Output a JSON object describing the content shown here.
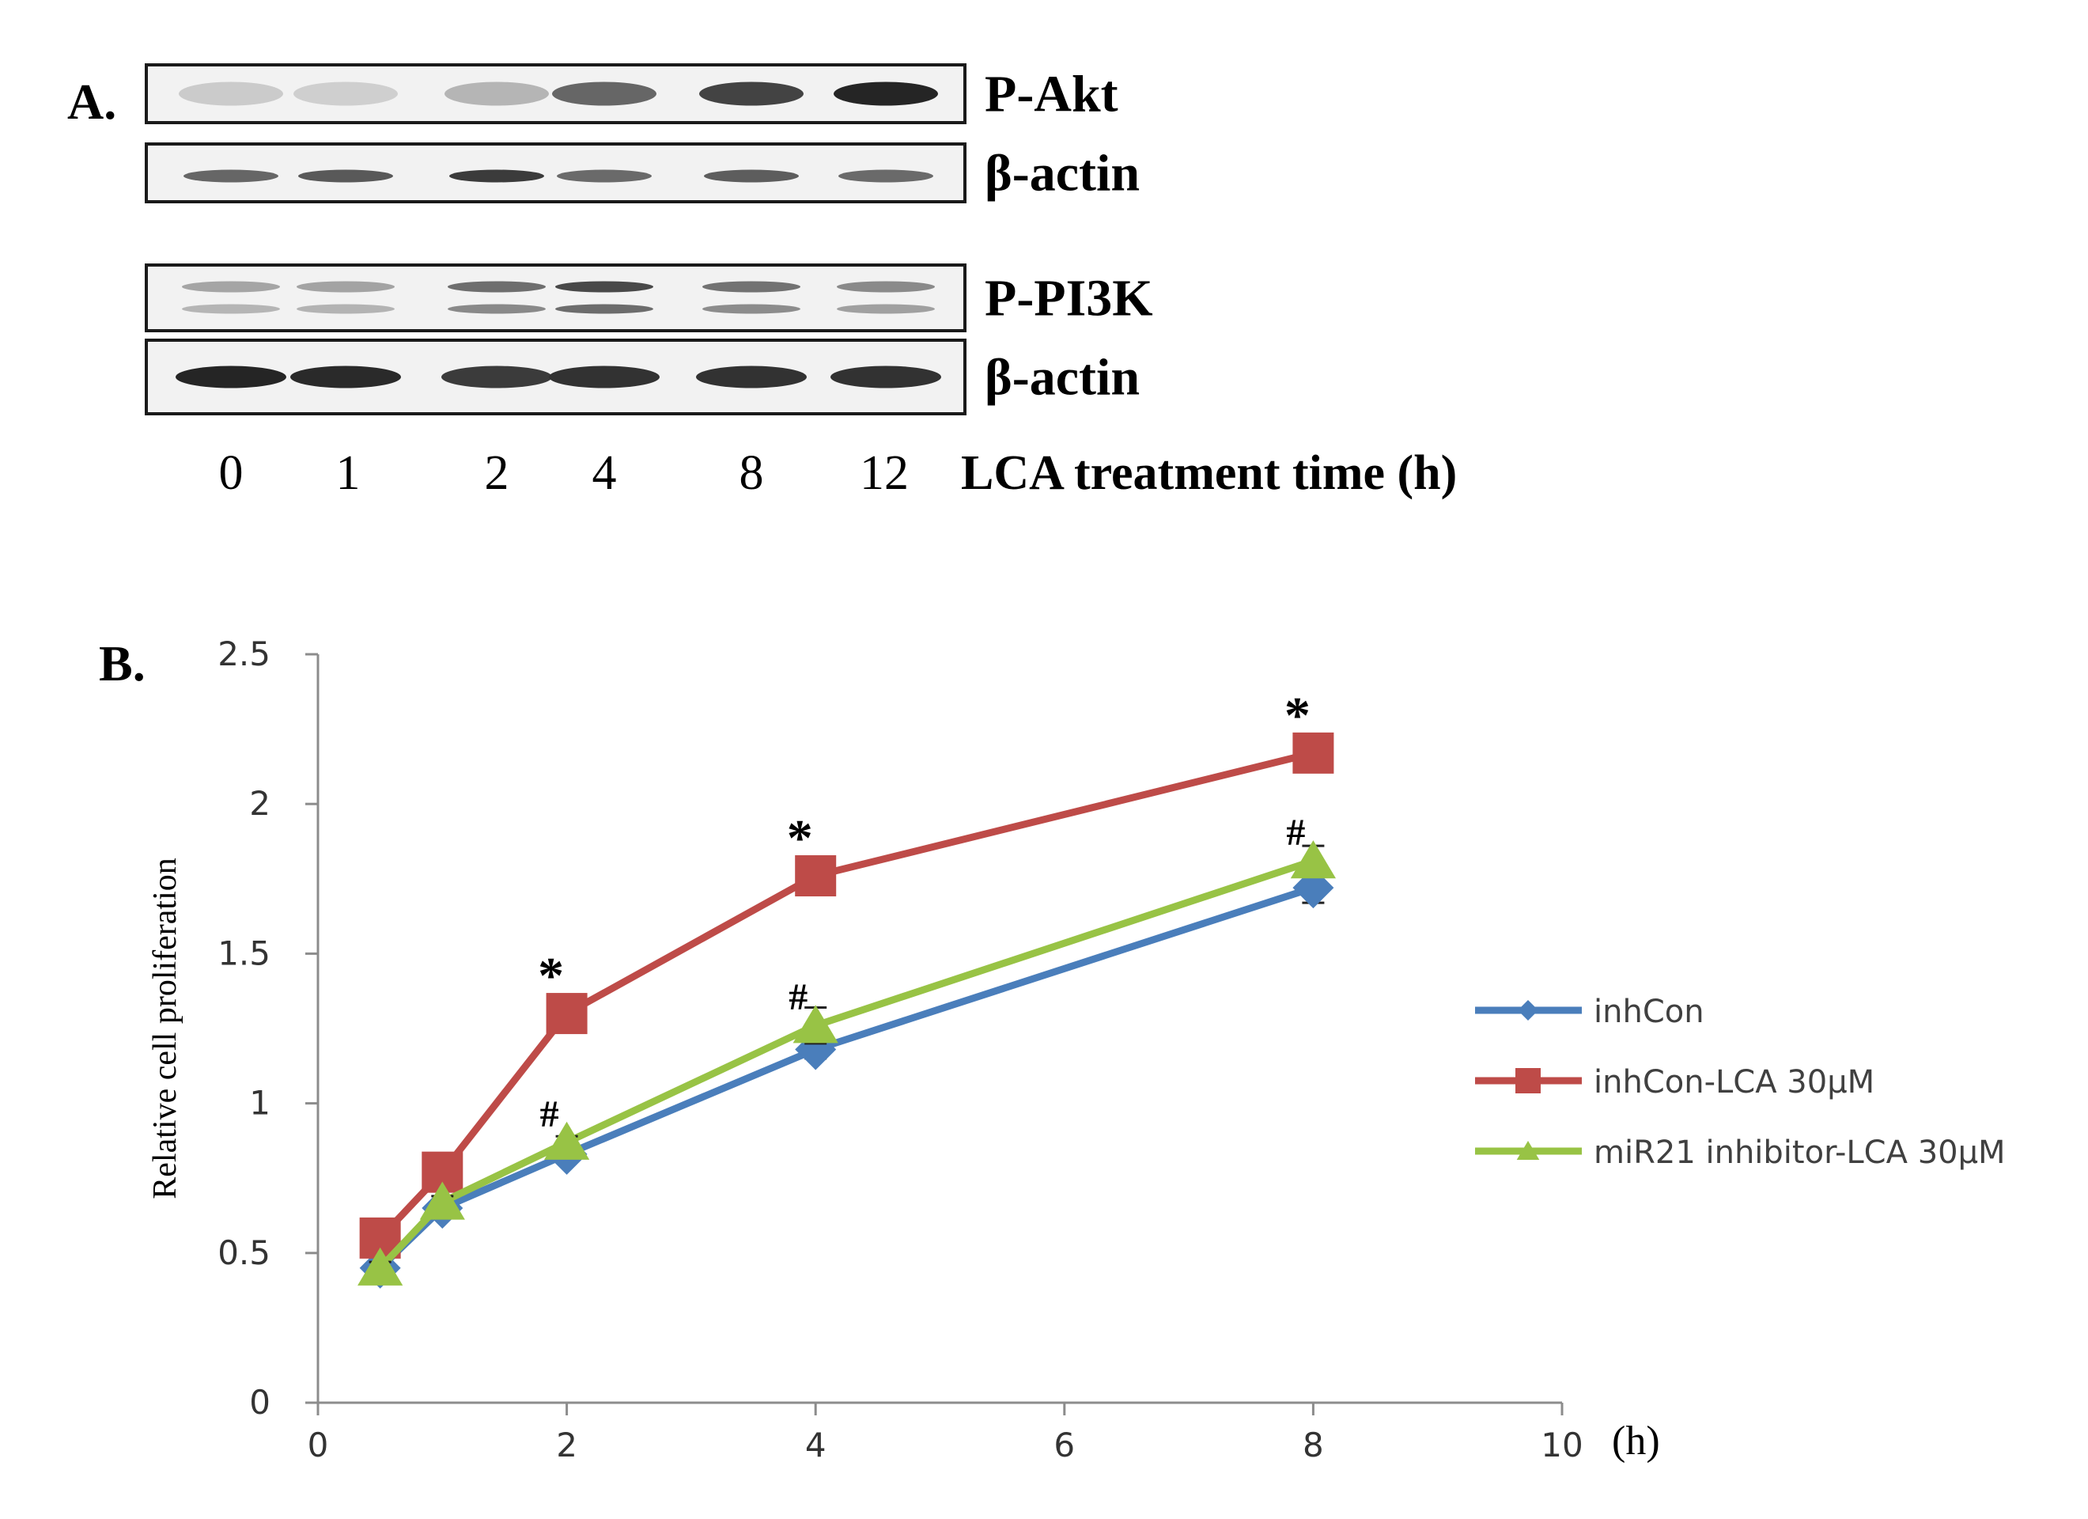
{
  "panel_a": {
    "label": "A.",
    "blots": [
      {
        "name": "P-Akt",
        "band_intensity": [
          0.15,
          0.13,
          0.25,
          0.62,
          0.78,
          0.92
        ],
        "band_shape": "single"
      },
      {
        "name": "β-actin",
        "band_intensity": [
          0.62,
          0.68,
          0.82,
          0.6,
          0.66,
          0.6
        ],
        "band_shape": "thin"
      },
      {
        "name": "P-PI3K",
        "band_intensity": [
          0.35,
          0.36,
          0.62,
          0.8,
          0.6,
          0.48
        ],
        "band_shape": "double"
      },
      {
        "name": "β-actin",
        "band_intensity": [
          0.92,
          0.9,
          0.82,
          0.86,
          0.86,
          0.86
        ],
        "band_shape": "thick"
      }
    ],
    "lanes": [
      "0",
      "1",
      "2",
      "4",
      "8",
      "12"
    ],
    "axis_label": "LCA treatment time (h)"
  },
  "panel_b": {
    "label": "B."
  },
  "chart_data": {
    "type": "line",
    "ylabel": "Relative cell proliferation",
    "xunit": "(h)",
    "xlim": [
      0,
      10
    ],
    "ylim": [
      0,
      2.5
    ],
    "xticks": [
      "0",
      "2",
      "4",
      "6",
      "8",
      "10"
    ],
    "yticks": [
      "0",
      "0.5",
      "1",
      "1.5",
      "2",
      "2.5"
    ],
    "grid": false,
    "legend_position": "right",
    "x": [
      0.5,
      1,
      2,
      4,
      8
    ],
    "series": [
      {
        "name": "inhCon",
        "values": [
          0.45,
          0.65,
          0.83,
          1.18,
          1.72
        ],
        "errors": [
          0.02,
          0.02,
          0.02,
          0.03,
          0.05
        ],
        "color": "#4a7ebb",
        "marker": "diamond"
      },
      {
        "name": "inhCon-LCA 30μM",
        "values": [
          0.55,
          0.77,
          1.3,
          1.76,
          2.17
        ],
        "errors": [
          0.02,
          0.02,
          0.03,
          0.03,
          0.06
        ],
        "color": "#be4b48",
        "marker": "square"
      },
      {
        "name": "miR21 inhibitor-LCA 30μM",
        "values": [
          0.45,
          0.67,
          0.87,
          1.26,
          1.81
        ],
        "errors": [
          0.02,
          0.02,
          0.02,
          0.06,
          0.05
        ],
        "color": "#98c345",
        "marker": "triangle"
      }
    ],
    "annotations": [
      {
        "text": "*",
        "x": 2,
        "series": 1
      },
      {
        "text": "*",
        "x": 4,
        "series": 1
      },
      {
        "text": "*",
        "x": 8,
        "series": 1
      },
      {
        "text": "#",
        "x": 2,
        "series": 2
      },
      {
        "text": "#",
        "x": 4,
        "series": 2
      },
      {
        "text": "#",
        "x": 8,
        "series": 2
      }
    ]
  }
}
